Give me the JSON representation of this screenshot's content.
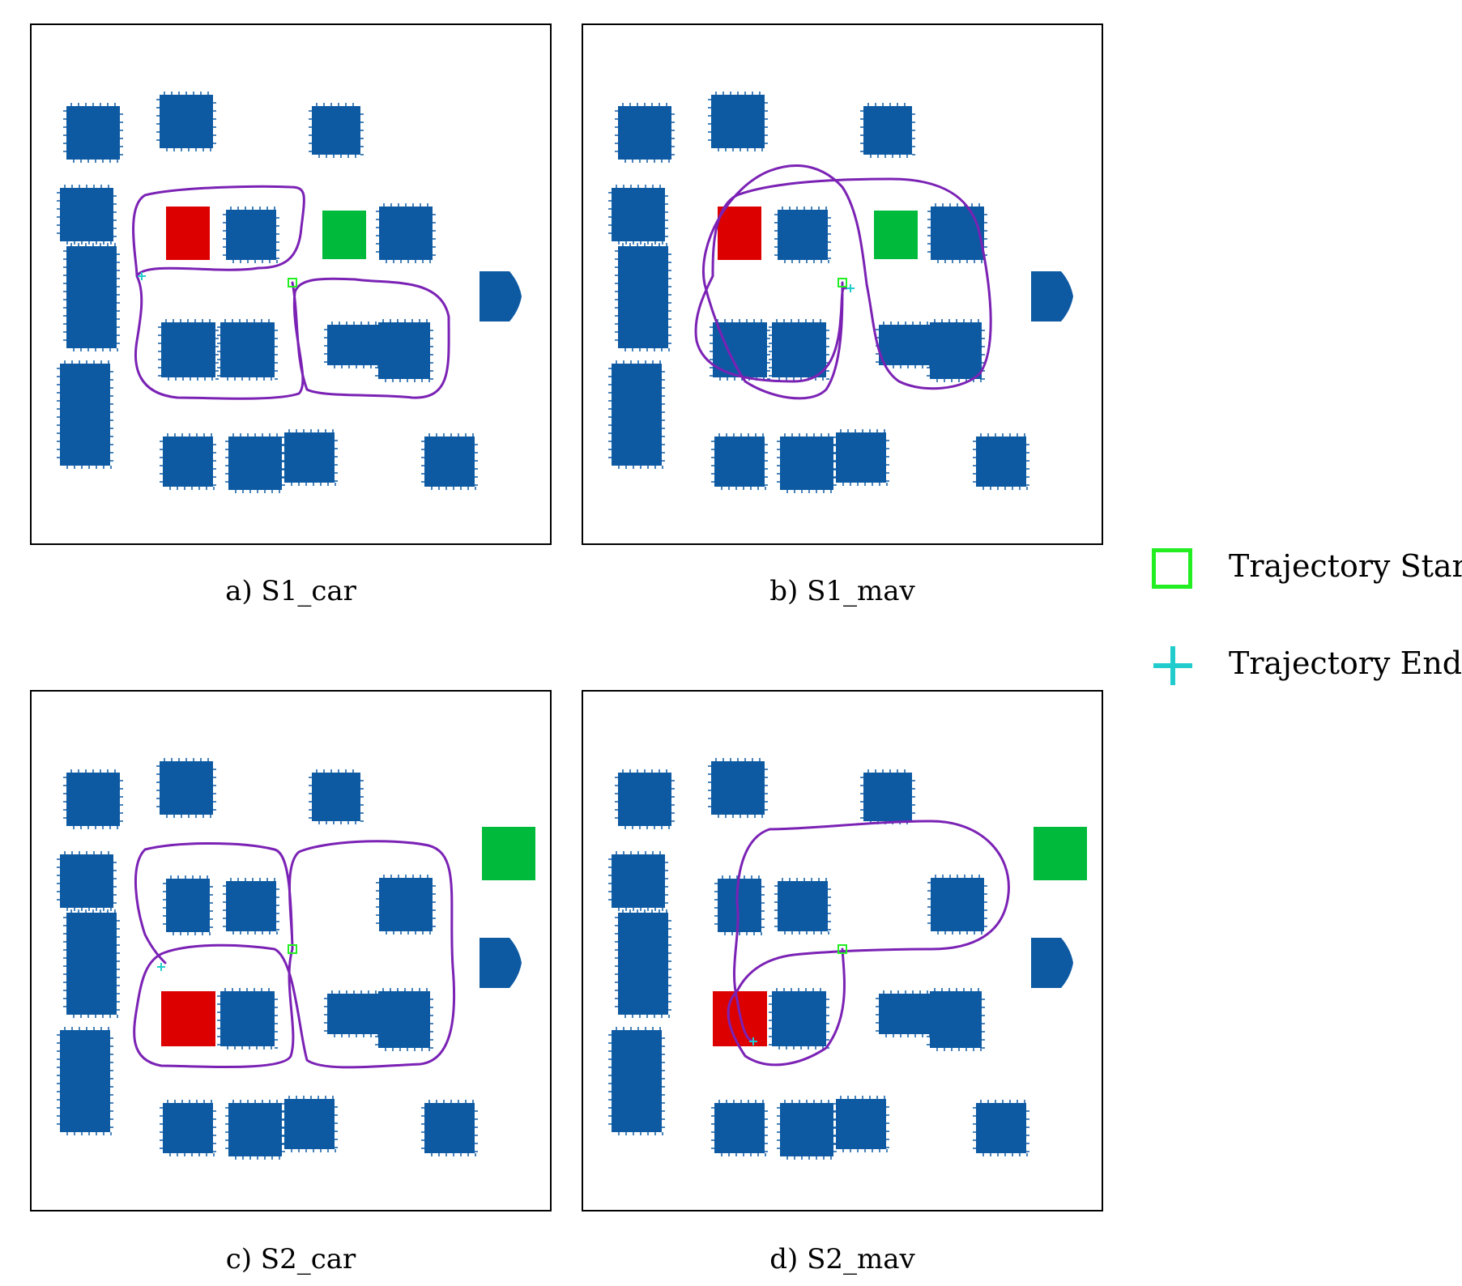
{
  "colors": {
    "building": "#0d5aa3",
    "red_target": "#dd0000",
    "green_target": "#00bb3b",
    "trajectory": "#7b22b5",
    "start": "#22ee22",
    "end": "#22cccc",
    "border": "#000000"
  },
  "panels": [
    {
      "id": "a",
      "caption": "a) S1_car"
    },
    {
      "id": "b",
      "caption": "b) S1_mav"
    },
    {
      "id": "c",
      "caption": "c) S2_car"
    },
    {
      "id": "d",
      "caption": "d) S2_mav"
    }
  ],
  "legend": {
    "start_label": "Trajectory Start",
    "end_label": "Trajectory End",
    "start_icon": "green-square-icon",
    "end_icon": "cyan-plus-icon"
  }
}
